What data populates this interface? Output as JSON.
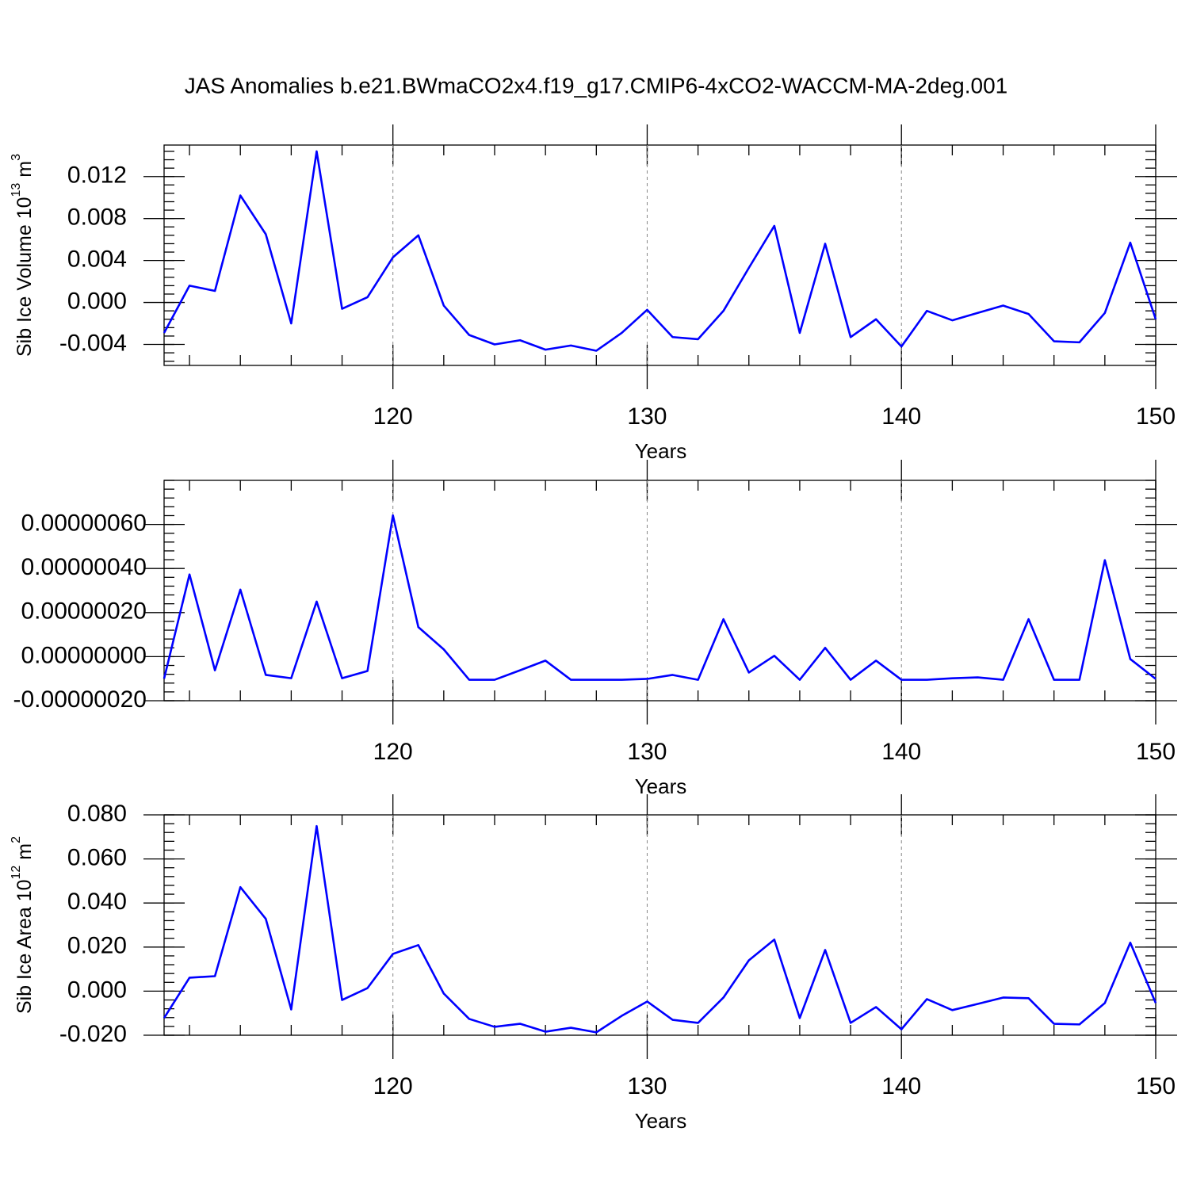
{
  "title": "JAS Anomalies b.e21.BWmaCO2x4.f19_g17.CMIP6-4xCO2-WACCM-MA-2deg.001",
  "chart_data": [
    {
      "type": "line",
      "ylabel": [
        "Sib Ice Volume 10",
        "13",
        "m",
        "3"
      ],
      "xlabel": "Years",
      "x": [
        111,
        112,
        113,
        114,
        115,
        116,
        117,
        118,
        119,
        120,
        121,
        122,
        123,
        124,
        125,
        126,
        127,
        128,
        129,
        130,
        131,
        132,
        133,
        134,
        135,
        136,
        137,
        138,
        139,
        140,
        141,
        142,
        143,
        144,
        145,
        146,
        147,
        148,
        149,
        150
      ],
      "series": [
        {
          "color": "#0000ff",
          "values": [
            -0.0029,
            0.0016,
            0.0011,
            0.0102,
            0.0065,
            -0.002,
            0.0144,
            -0.0006,
            0.0005,
            0.0043,
            0.0064,
            -0.0003,
            -0.0031,
            -0.004,
            -0.0036,
            -0.0045,
            -0.0041,
            -0.0046,
            -0.0029,
            -0.0007,
            -0.0033,
            -0.0035,
            -0.0008,
            0.0033,
            0.0073,
            -0.0029,
            0.0056,
            -0.0033,
            -0.0016,
            -0.0042,
            -0.0008,
            -0.0017,
            -0.001,
            -0.0003,
            -0.0011,
            -0.0037,
            -0.0038,
            -0.001,
            0.0057,
            -0.0016
          ]
        }
      ],
      "xlim": [
        111,
        150
      ],
      "xticks": [
        120,
        130,
        140,
        150
      ],
      "ylim": [
        -0.006,
        0.015
      ],
      "yticks": [
        -0.004,
        {
          "value": 0,
          "label": "0.000"
        },
        0.004,
        0.008,
        0.012
      ],
      "grid": true
    },
    {
      "type": "line",
      "xlabel": "Years",
      "x": [
        111,
        112,
        113,
        114,
        115,
        116,
        117,
        118,
        119,
        120,
        121,
        122,
        123,
        124,
        125,
        126,
        127,
        128,
        129,
        130,
        131,
        132,
        133,
        134,
        135,
        136,
        137,
        138,
        139,
        140,
        141,
        142,
        143,
        144,
        145,
        146,
        147,
        148,
        149,
        150
      ],
      "series": [
        {
          "color": "#0000ff",
          "values": [
            -1e-07,
            3.73e-07,
            -6.2e-08,
            3.04e-07,
            -8.3e-08,
            -9.8e-08,
            2.5e-07,
            -9.8e-08,
            -6.5e-08,
            6.41e-07,
            1.34e-07,
            3.3e-08,
            -1.05e-07,
            -1.05e-07,
            -6.2e-08,
            -1.8e-08,
            -1.05e-07,
            -1.05e-07,
            -1.05e-07,
            -1.01e-07,
            -8.3e-08,
            -1.05e-07,
            1.7e-07,
            -7.2e-08,
            4e-09,
            -1.05e-07,
            4e-08,
            -1.05e-07,
            -1.8e-08,
            -1.05e-07,
            -1.05e-07,
            -9.8e-08,
            -9.4e-08,
            -1.05e-07,
            1.7e-07,
            -1.05e-07,
            -1.05e-07,
            4.38e-07,
            -1.1e-08,
            -1.01e-07
          ]
        }
      ],
      "xlim": [
        111,
        150
      ],
      "xticks": [
        120,
        130,
        140,
        150
      ],
      "ylim": [
        -2e-07,
        8e-07
      ],
      "yticks": [
        {
          "value": -2e-07,
          "label": "-0.00000020"
        },
        {
          "value": 0,
          "label": "0.00000000"
        },
        {
          "value": 2e-07,
          "label": "0.00000020"
        },
        {
          "value": 4e-07,
          "label": "0.00000040"
        },
        {
          "value": 6e-07,
          "label": "0.00000060"
        }
      ],
      "grid": true
    },
    {
      "type": "line",
      "ylabel": [
        "Sib Ice Area 10",
        "12",
        "m",
        "2"
      ],
      "xlabel": "Years",
      "x": [
        111,
        112,
        113,
        114,
        115,
        116,
        117,
        118,
        119,
        120,
        121,
        122,
        123,
        124,
        125,
        126,
        127,
        128,
        129,
        130,
        131,
        132,
        133,
        134,
        135,
        136,
        137,
        138,
        139,
        140,
        141,
        142,
        143,
        144,
        145,
        146,
        147,
        148,
        149,
        150
      ],
      "series": [
        {
          "color": "#0000ff",
          "values": [
            -0.0122,
            0.0061,
            0.0068,
            0.0472,
            0.0328,
            -0.0083,
            0.0749,
            -0.004,
            0.0014,
            0.0169,
            0.0209,
            -0.0011,
            -0.0126,
            -0.0162,
            -0.0148,
            -0.0184,
            -0.0166,
            -0.0187,
            -0.0112,
            -0.0047,
            -0.013,
            -0.0144,
            -0.0029,
            0.014,
            0.0234,
            -0.0122,
            0.0187,
            -0.0144,
            -0.0072,
            -0.0173,
            -0.0036,
            -0.0086,
            -0.0058,
            -0.0029,
            -0.0032,
            -0.0148,
            -0.0151,
            -0.0054,
            0.022,
            -0.0054
          ]
        }
      ],
      "xlim": [
        111,
        150
      ],
      "xticks": [
        120,
        130,
        140,
        150
      ],
      "ylim": [
        -0.02,
        0.08
      ],
      "yticks": [
        {
          "value": -0.02,
          "label": "-0.020"
        },
        {
          "value": 0,
          "label": "0.000"
        },
        {
          "value": 0.02,
          "label": "0.020"
        },
        {
          "value": 0.04,
          "label": "0.040"
        },
        {
          "value": 0.06,
          "label": "0.060"
        },
        {
          "value": 0.08,
          "label": "0.080"
        }
      ],
      "grid": true
    }
  ]
}
